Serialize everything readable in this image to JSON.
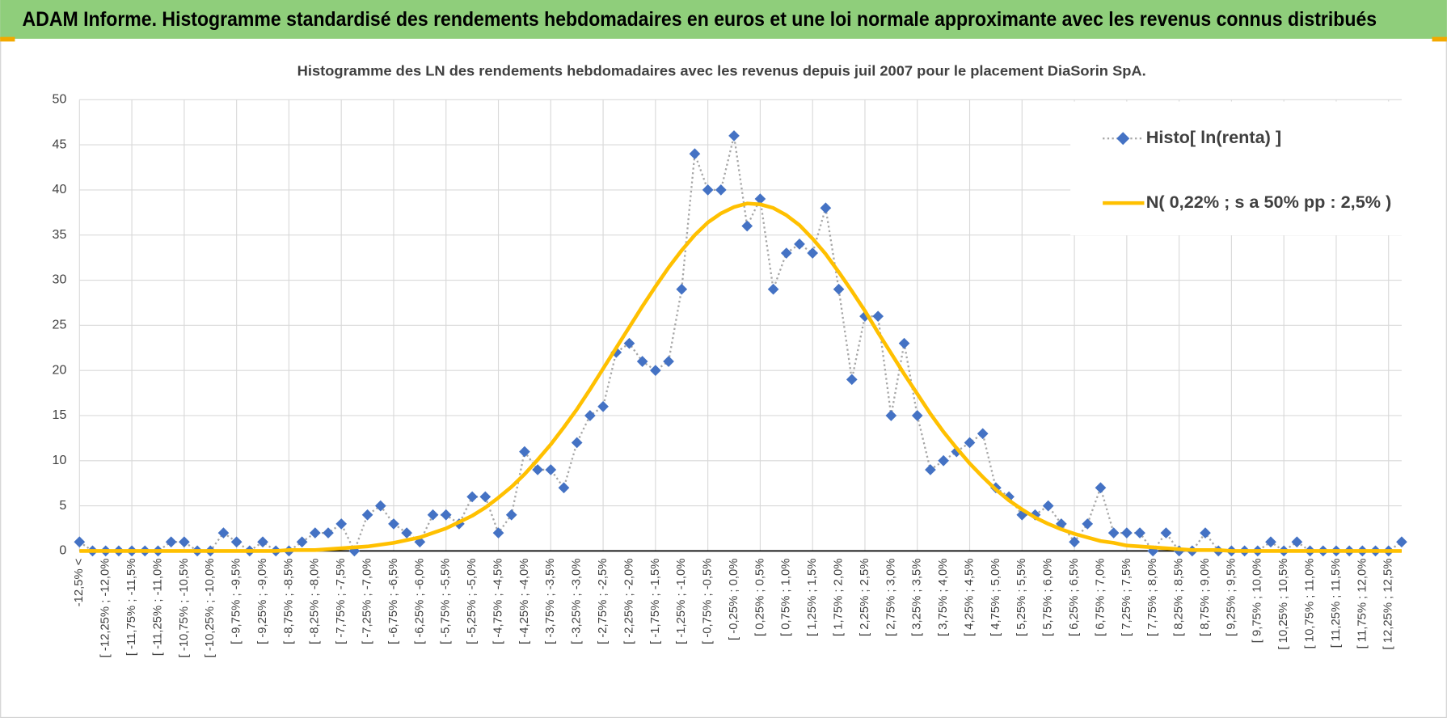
{
  "page_title": "ADAM Informe. Histogramme standardisé des rendements hebdomadaires en euros et une loi normale approximante avec les revenus connus distribués",
  "chart_data": {
    "type": "line",
    "title": "Histogramme des LN des rendements hebdomadaires avec les revenus depuis juil 2007 pour le placement DiaSorin SpA.",
    "categories": [
      "-12,5% <",
      null,
      "[ -12,25% ; -12,0%",
      null,
      "[ -11,75% ; -11,5%",
      null,
      "[ -11,25% ; -11,0%",
      null,
      "[ -10,75% ; -10,5%",
      null,
      "[ -10,25% ; -10,0%",
      null,
      "[ -9,75% ; -9,5%",
      null,
      "[ -9,25% ; -9,0%",
      null,
      "[ -8,75% ; -8,5%",
      null,
      "[ -8,25% ; -8,0%",
      null,
      "[ -7,75% ; -7,5%",
      null,
      "[ -7,25% ; -7,0%",
      null,
      "[ -6,75% ; -6,5%",
      null,
      "[ -6,25% ; -6,0%",
      null,
      "[ -5,75% ; -5,5%",
      null,
      "[ -5,25% ; -5,0%",
      null,
      "[ -4,75% ; -4,5%",
      null,
      "[ -4,25% ; -4,0%",
      null,
      "[ -3,75% ; -3,5%",
      null,
      "[ -3,25% ; -3,0%",
      null,
      "[ -2,75% ; -2,5%",
      null,
      "[ -2,25% ; -2,0%",
      null,
      "[ -1,75% ; -1,5%",
      null,
      "[ -1,25% ; -1,0%",
      null,
      "[ -0,75% ; -0,5%",
      null,
      "[ -0,25% ; 0,0%",
      null,
      "[ 0,25% ; 0,5%",
      null,
      "[ 0,75% ; 1,0%",
      null,
      "[ 1,25% ; 1,5%",
      null,
      "[ 1,75% ; 2,0%",
      null,
      "[ 2,25% ; 2,5%",
      null,
      "[ 2,75% ; 3,0%",
      null,
      "[ 3,25% ; 3,5%",
      null,
      "[ 3,75% ; 4,0%",
      null,
      "[ 4,25% ; 4,5%",
      null,
      "[ 4,75% ; 5,0%",
      null,
      "[ 5,25% ; 5,5%",
      null,
      "[ 5,75% ; 6,0%",
      null,
      "[ 6,25% ; 6,5%",
      null,
      "[ 6,75% ; 7,0%",
      null,
      "[ 7,25% ; 7,5%",
      null,
      "[ 7,75% ; 8,0%",
      null,
      "[ 8,25% ; 8,5%",
      null,
      "[ 8,75% ; 9,0%",
      null,
      "[ 9,25% ; 9,5%",
      null,
      "[ 9,75% ; 10,0%",
      null,
      "[ 10,25% ; 10,5%",
      null,
      "[ 10,75% ; 11,0%",
      null,
      "[ 11,25% ; 11,5%",
      null,
      "[ 11,75% ; 12,0%",
      null,
      "[ 12,25% ; 12,5%",
      null
    ],
    "series": [
      {
        "name": "Histo[ ln(renta) ]",
        "color": "#4472c4",
        "line_color": "#a6a6a6",
        "line_style": "dotted",
        "marker": "diamond",
        "values": [
          1,
          0,
          0,
          0,
          0,
          0,
          0,
          1,
          1,
          0,
          0,
          2,
          1,
          0,
          1,
          0,
          0,
          1,
          2,
          2,
          3,
          0,
          4,
          5,
          3,
          2,
          1,
          4,
          4,
          3,
          6,
          6,
          2,
          4,
          11,
          9,
          9,
          7,
          12,
          15,
          16,
          22,
          23,
          21,
          20,
          21,
          29,
          44,
          40,
          40,
          46,
          36,
          39,
          29,
          33,
          34,
          33,
          38,
          29,
          19,
          26,
          26,
          15,
          23,
          15,
          9,
          10,
          11,
          12,
          13,
          7,
          6,
          4,
          4,
          5,
          3,
          1,
          3,
          7,
          2,
          2,
          2,
          0,
          2,
          0,
          0,
          2,
          0,
          0,
          0,
          0,
          1,
          0,
          1,
          0,
          0,
          0,
          0,
          0,
          0,
          0,
          1
        ]
      },
      {
        "name": "N( 0,22% ; s a 50% pp : 2,5% )",
        "color": "#ffc000",
        "line_style": "solid",
        "marker": "none",
        "values": [
          0,
          0,
          0,
          0,
          0,
          0,
          0,
          0,
          0,
          0,
          0,
          0,
          0,
          0,
          0,
          0,
          0.1,
          0.1,
          0.1,
          0.2,
          0.3,
          0.4,
          0.5,
          0.7,
          0.9,
          1.2,
          1.5,
          2.0,
          2.5,
          3.2,
          3.9,
          4.8,
          5.9,
          7.1,
          8.5,
          10.1,
          11.8,
          13.7,
          15.7,
          17.9,
          20.2,
          22.5,
          24.8,
          27.1,
          29.3,
          31.4,
          33.3,
          35.0,
          36.4,
          37.4,
          38.1,
          38.5,
          38.4,
          38.0,
          37.2,
          36.1,
          34.6,
          32.9,
          30.9,
          28.8,
          26.6,
          24.2,
          21.9,
          19.6,
          17.4,
          15.2,
          13.2,
          11.4,
          9.7,
          8.2,
          6.8,
          5.6,
          4.6,
          3.7,
          3.0,
          2.4,
          1.9,
          1.5,
          1.1,
          0.9,
          0.6,
          0.5,
          0.4,
          0.3,
          0.2,
          0.1,
          0.1,
          0.1,
          0,
          0,
          0,
          0,
          0,
          0,
          0,
          0,
          0,
          0,
          0,
          0,
          0,
          0
        ]
      }
    ],
    "ylim": [
      0,
      50
    ],
    "yticks": [
      0,
      5,
      10,
      15,
      20,
      25,
      30,
      35,
      40,
      45,
      50
    ],
    "grid": true,
    "legend": "upper-right"
  }
}
